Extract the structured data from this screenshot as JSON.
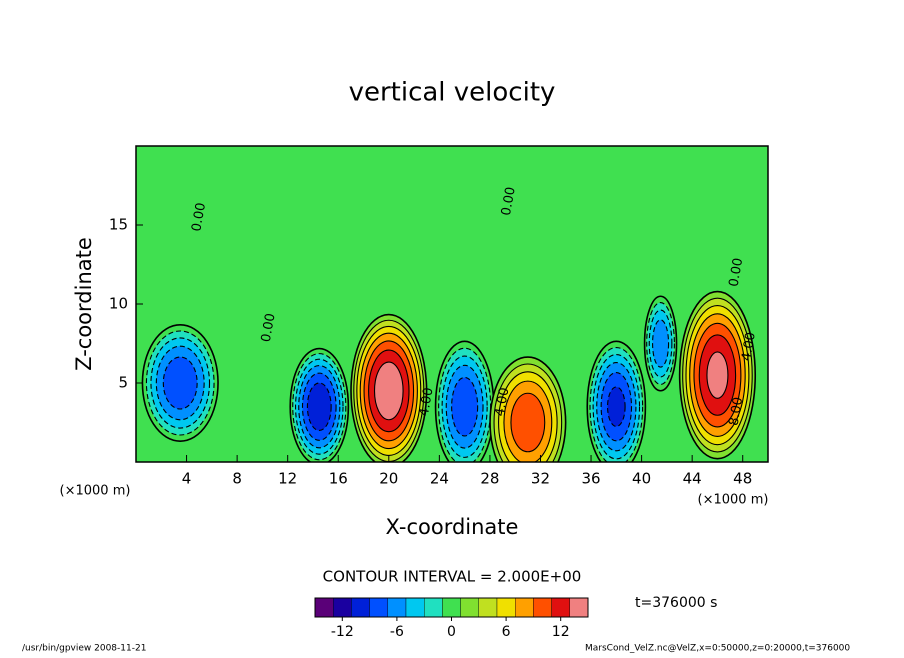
{
  "chart_data": {
    "type": "contour",
    "title": "vertical velocity",
    "xlabel": "X-coordinate",
    "ylabel": "Z-coordinate",
    "x_unit": "(×1000 m)",
    "y_unit": "(×1000 m)",
    "xlim": [
      0,
      50
    ],
    "ylim": [
      0,
      20
    ],
    "xticks": [
      4,
      8,
      12,
      16,
      20,
      24,
      28,
      32,
      36,
      40,
      44,
      48
    ],
    "yticks": [
      5,
      10,
      15
    ],
    "background": 0,
    "contour_interval": {
      "value": 2,
      "label": "CONTOUR INTERVAL = 2.000E+00"
    },
    "features": [
      {
        "x": 3.5,
        "z": 5,
        "peak": -10,
        "sx": 2.6,
        "sz": 3.2
      },
      {
        "x": 14.5,
        "z": 3.5,
        "peak": -12,
        "sx": 2,
        "sz": 3.2
      },
      {
        "x": 20,
        "z": 4.5,
        "peak": 14,
        "sx": 2.6,
        "sz": 4.2
      },
      {
        "x": 26,
        "z": 3.5,
        "peak": -10,
        "sx": 2,
        "sz": 3.6
      },
      {
        "x": 31,
        "z": 2.5,
        "peak": 10,
        "sx": 2.6,
        "sz": 3.6
      },
      {
        "x": 38,
        "z": 3.5,
        "peak": -11,
        "sx": 2,
        "sz": 3.6
      },
      {
        "x": 41.5,
        "z": 7.5,
        "peak": -8,
        "sx": 1.1,
        "sz": 2.6
      },
      {
        "x": 46,
        "z": 5.5,
        "peak": 13,
        "sx": 2.6,
        "sz": 4.6
      }
    ],
    "contour_labels": [
      {
        "text": "4.00",
        "x": 23,
        "z": 3.8
      },
      {
        "text": "4.00",
        "x": 29,
        "z": 3.8
      },
      {
        "text": "8.00",
        "x": 47.5,
        "z": 3.2
      },
      {
        "text": "4.00",
        "x": 48.5,
        "z": 7.3
      },
      {
        "text": "0.00",
        "x": 10.5,
        "z": 8.5
      },
      {
        "text": "0.00",
        "x": 5,
        "z": 15.5
      },
      {
        "text": "0.00",
        "x": 29.5,
        "z": 16.5
      },
      {
        "text": "0.00",
        "x": 47.5,
        "z": 12
      }
    ],
    "colorbar": {
      "range": [
        -15,
        15
      ],
      "ticks": [
        -12,
        -6,
        0,
        6,
        12
      ],
      "colors": [
        "#5a0078",
        "#1a00a0",
        "#0020d8",
        "#0050ff",
        "#0090ff",
        "#00c8f0",
        "#20e0c0",
        "#40e050",
        "#80e030",
        "#c0e020",
        "#f0e000",
        "#ffa000",
        "#ff5000",
        "#e01010",
        "#f08080"
      ]
    },
    "time_label": "t=376000 s",
    "footer_left": "/usr/bin/gpview   2008-11-21",
    "footer_right": "MarsCond_VelZ.nc@VelZ,x=0:50000,z=0:20000,t=376000"
  }
}
